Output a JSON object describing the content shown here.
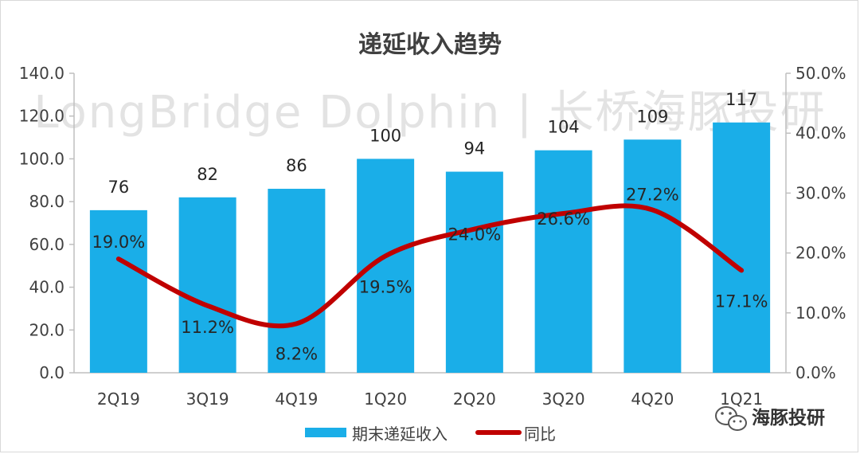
{
  "chart_data": {
    "type": "bar",
    "title": "递延收入趋势",
    "categories": [
      "2Q19",
      "3Q19",
      "4Q19",
      "1Q20",
      "2Q20",
      "3Q20",
      "4Q20",
      "1Q21"
    ],
    "series": [
      {
        "name": "期末递延收入",
        "type": "bar",
        "axis": "left",
        "values": [
          76,
          82,
          86,
          100,
          94,
          104,
          109,
          117
        ],
        "labels": [
          "76",
          "82",
          "86",
          "100",
          "94",
          "104",
          "109",
          "117"
        ],
        "color": "#1aaee8"
      },
      {
        "name": "同比",
        "type": "line",
        "axis": "right",
        "values": [
          19.0,
          11.2,
          8.2,
          19.5,
          24.0,
          26.6,
          27.2,
          17.1
        ],
        "labels": [
          "19.0%",
          "11.2%",
          "8.2%",
          "19.5%",
          "24.0%",
          "26.6%",
          "27.2%",
          "17.1%"
        ],
        "color": "#c00000"
      }
    ],
    "left_axis": {
      "ylim": [
        0,
        140
      ],
      "ticks": [
        "0.0",
        "20.0",
        "40.0",
        "60.0",
        "80.0",
        "100.0",
        "120.0",
        "140.0"
      ]
    },
    "right_axis": {
      "ylim": [
        0,
        50
      ],
      "ticks": [
        "0.0%",
        "10.0%",
        "20.0%",
        "30.0%",
        "40.0%",
        "50.0%"
      ]
    },
    "legend": {
      "position": "bottom"
    }
  },
  "watermark": "LongBridge Dolphin | 长桥海豚投研",
  "brand": "海豚投研"
}
